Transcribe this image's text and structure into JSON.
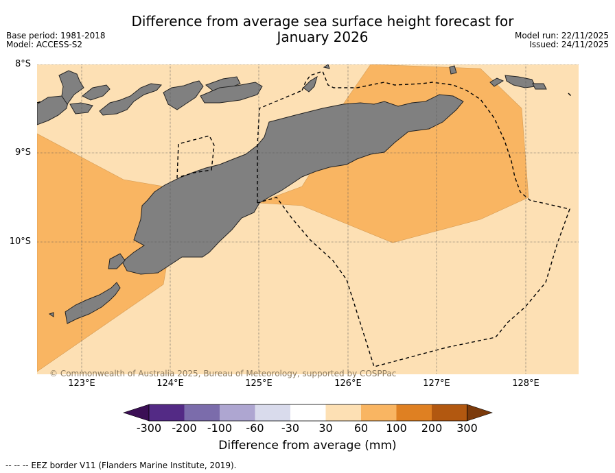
{
  "title_line1": "Difference from average sea surface height forecast for",
  "title_line2": "January 2026",
  "base_period": "Base period: 1981-2018",
  "model": "Model: ACCESS-S2",
  "model_run": "Model run: 22/11/2025",
  "issued": "Issued: 24/11/2025",
  "lat_labels": [
    "8°S",
    "9°S",
    "10°S"
  ],
  "lon_labels": [
    "123°E",
    "124°E",
    "125°E",
    "126°E",
    "127°E",
    "128°E"
  ],
  "copyright": "© Commonwealth of Australia 2025, Bureau of Meteorology, supported by COSPPac",
  "colorbar": {
    "ticks": [
      "-300",
      "-200",
      "-100",
      "-60",
      "-30",
      "30",
      "60",
      "100",
      "200",
      "300"
    ],
    "colors": [
      "#3b0f55",
      "#532a85",
      "#7b6cab",
      "#aea6d1",
      "#d9dbec",
      "#ffffff",
      "#fde0b4",
      "#f9b562",
      "#df8022",
      "#b25810",
      "#7b3a0b"
    ],
    "title": "Difference from average (mm)"
  },
  "legend_eez": "--  --  -- EEZ border V11 (Flanders Marine Institute, 2019).",
  "colors": {
    "land": "#808080",
    "band_30_60": "#fde0b4",
    "band_60_100": "#f9b562"
  }
}
